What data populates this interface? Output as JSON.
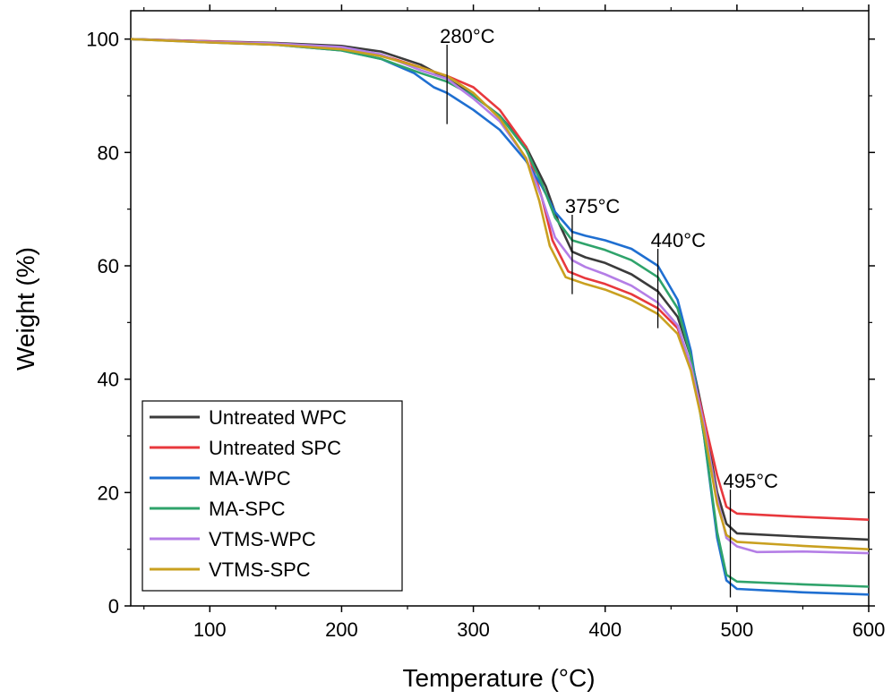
{
  "chart_data": {
    "type": "line",
    "title": "",
    "xlabel": "Temperature (°C)",
    "ylabel": "Weight (%)",
    "xlim": [
      40,
      600
    ],
    "ylim": [
      0,
      105
    ],
    "x_ticks": [
      100,
      200,
      300,
      400,
      500,
      600
    ],
    "y_ticks": [
      0,
      20,
      40,
      60,
      80,
      100
    ],
    "grid": false,
    "legend_position": "lower-left",
    "annotations": [
      {
        "label": "280°C",
        "x": 280,
        "y_from": 85,
        "y_to": 99
      },
      {
        "label": "375°C",
        "x": 375,
        "y_from": 55,
        "y_to": 69
      },
      {
        "label": "440°C",
        "x": 440,
        "y_from": 49,
        "y_to": 63
      },
      {
        "label": "495°C",
        "x": 495,
        "y_from": 1.5,
        "y_to": 20.5
      }
    ],
    "series": [
      {
        "name": "Untreated WPC",
        "color": "#3b3b3b",
        "points": [
          [
            40,
            100
          ],
          [
            100,
            99.6
          ],
          [
            150,
            99.3
          ],
          [
            200,
            98.8
          ],
          [
            230,
            97.8
          ],
          [
            260,
            95.5
          ],
          [
            280,
            93
          ],
          [
            300,
            90
          ],
          [
            320,
            86.5
          ],
          [
            340,
            81
          ],
          [
            355,
            74
          ],
          [
            365,
            67.5
          ],
          [
            375,
            62.5
          ],
          [
            385,
            61.5
          ],
          [
            400,
            60.5
          ],
          [
            420,
            58.5
          ],
          [
            440,
            55.5
          ],
          [
            455,
            51
          ],
          [
            465,
            44
          ],
          [
            475,
            33
          ],
          [
            485,
            20
          ],
          [
            492,
            14.5
          ],
          [
            500,
            12.8
          ],
          [
            550,
            12.2
          ],
          [
            600,
            11.7
          ]
        ]
      },
      {
        "name": "Untreated SPC",
        "color": "#e8383d",
        "points": [
          [
            40,
            100
          ],
          [
            100,
            99.6
          ],
          [
            150,
            99.2
          ],
          [
            200,
            98.5
          ],
          [
            230,
            97.2
          ],
          [
            260,
            95
          ],
          [
            280,
            93.5
          ],
          [
            300,
            91.5
          ],
          [
            320,
            87.5
          ],
          [
            340,
            81
          ],
          [
            352,
            72
          ],
          [
            360,
            64.5
          ],
          [
            372,
            59
          ],
          [
            385,
            57.8
          ],
          [
            400,
            56.8
          ],
          [
            420,
            55
          ],
          [
            440,
            52.5
          ],
          [
            455,
            49
          ],
          [
            465,
            42.5
          ],
          [
            475,
            33
          ],
          [
            485,
            23
          ],
          [
            492,
            17.5
          ],
          [
            500,
            16.3
          ],
          [
            550,
            15.7
          ],
          [
            600,
            15.2
          ]
        ]
      },
      {
        "name": "MA-WPC",
        "color": "#1f6fd1",
        "points": [
          [
            40,
            100
          ],
          [
            100,
            99.4
          ],
          [
            150,
            99
          ],
          [
            200,
            98
          ],
          [
            230,
            96.5
          ],
          [
            255,
            94
          ],
          [
            270,
            91.5
          ],
          [
            280,
            90.5
          ],
          [
            300,
            87.5
          ],
          [
            320,
            84
          ],
          [
            340,
            78.5
          ],
          [
            352,
            74
          ],
          [
            362,
            69.5
          ],
          [
            375,
            66
          ],
          [
            385,
            65.3
          ],
          [
            400,
            64.5
          ],
          [
            420,
            63
          ],
          [
            440,
            60
          ],
          [
            455,
            54
          ],
          [
            465,
            45
          ],
          [
            475,
            30
          ],
          [
            485,
            12
          ],
          [
            492,
            4.5
          ],
          [
            500,
            3
          ],
          [
            550,
            2.4
          ],
          [
            600,
            2
          ]
        ]
      },
      {
        "name": "MA-SPC",
        "color": "#2fa36b",
        "points": [
          [
            40,
            100
          ],
          [
            100,
            99.5
          ],
          [
            150,
            99
          ],
          [
            200,
            98
          ],
          [
            230,
            96.5
          ],
          [
            260,
            94
          ],
          [
            280,
            92.5
          ],
          [
            300,
            90
          ],
          [
            320,
            86.5
          ],
          [
            340,
            80.5
          ],
          [
            352,
            74.5
          ],
          [
            362,
            68.5
          ],
          [
            375,
            64.5
          ],
          [
            385,
            63.8
          ],
          [
            400,
            62.8
          ],
          [
            420,
            61
          ],
          [
            440,
            58
          ],
          [
            455,
            52.5
          ],
          [
            465,
            44
          ],
          [
            475,
            30
          ],
          [
            485,
            13
          ],
          [
            492,
            5.5
          ],
          [
            500,
            4.3
          ],
          [
            550,
            3.8
          ],
          [
            600,
            3.4
          ]
        ]
      },
      {
        "name": "VTMS-WPC",
        "color": "#b47ee6",
        "points": [
          [
            40,
            100
          ],
          [
            100,
            99.5
          ],
          [
            150,
            99.2
          ],
          [
            200,
            98.6
          ],
          [
            230,
            97.3
          ],
          [
            260,
            94.5
          ],
          [
            280,
            93
          ],
          [
            300,
            89.5
          ],
          [
            320,
            85.5
          ],
          [
            340,
            79
          ],
          [
            352,
            72
          ],
          [
            362,
            65
          ],
          [
            375,
            61
          ],
          [
            385,
            59.8
          ],
          [
            400,
            58.5
          ],
          [
            420,
            56.5
          ],
          [
            440,
            53.5
          ],
          [
            455,
            49.5
          ],
          [
            465,
            42.5
          ],
          [
            475,
            32
          ],
          [
            485,
            19
          ],
          [
            492,
            12
          ],
          [
            500,
            10.5
          ],
          [
            515,
            9.5
          ],
          [
            550,
            9.6
          ],
          [
            600,
            9.3
          ]
        ]
      },
      {
        "name": "VTMS-SPC",
        "color": "#c9a020",
        "points": [
          [
            40,
            100
          ],
          [
            100,
            99.4
          ],
          [
            150,
            99
          ],
          [
            200,
            98.2
          ],
          [
            230,
            97
          ],
          [
            260,
            95
          ],
          [
            280,
            93.5
          ],
          [
            300,
            90.5
          ],
          [
            320,
            86
          ],
          [
            340,
            79
          ],
          [
            350,
            71.5
          ],
          [
            358,
            63.5
          ],
          [
            370,
            58
          ],
          [
            385,
            56.8
          ],
          [
            400,
            55.8
          ],
          [
            420,
            54
          ],
          [
            440,
            51.5
          ],
          [
            455,
            48
          ],
          [
            465,
            41.5
          ],
          [
            475,
            31
          ],
          [
            485,
            18
          ],
          [
            492,
            12.5
          ],
          [
            500,
            11.3
          ],
          [
            550,
            10.6
          ],
          [
            600,
            10
          ]
        ]
      }
    ]
  }
}
